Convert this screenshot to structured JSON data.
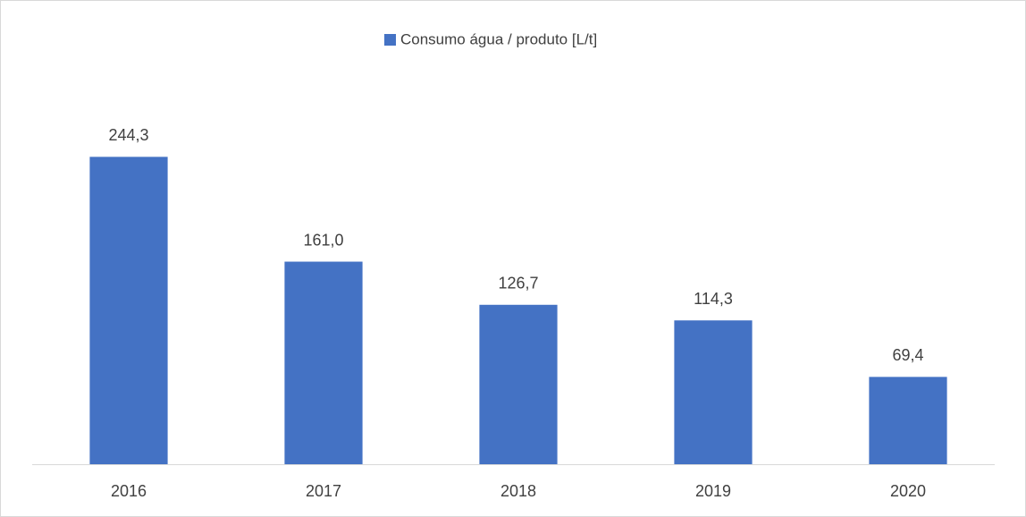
{
  "chart_data": {
    "type": "bar",
    "legend": "Consumo água / produto [L/t]",
    "categories": [
      "2016",
      "2017",
      "2018",
      "2019",
      "2020"
    ],
    "values": [
      244.3,
      161.0,
      126.7,
      114.3,
      69.4
    ],
    "value_labels": [
      "244,3",
      "161,0",
      "126,7",
      "114,3",
      "69,4"
    ],
    "color": "#4472c4",
    "ylim": [
      0,
      300
    ]
  }
}
